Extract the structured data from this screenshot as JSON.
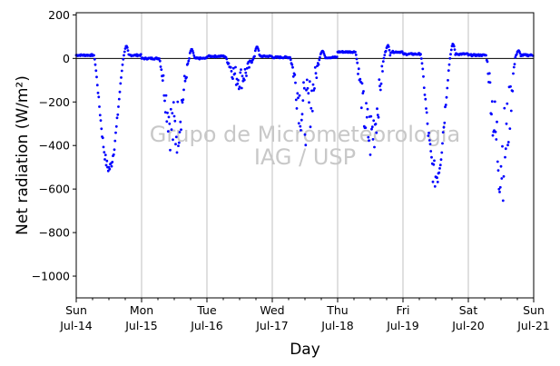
{
  "chart_data": {
    "type": "scatter",
    "title": "",
    "xlabel": "Day",
    "ylabel": "Net radiation (W/m²)",
    "ylim": [
      -1100,
      210
    ],
    "yticks": [
      200,
      0,
      -200,
      -400,
      -600,
      -800,
      -1000
    ],
    "ytick_labels": [
      "200",
      "0",
      "−200",
      "−400",
      "−600",
      "−800",
      "−1000"
    ],
    "xlim_days": [
      0,
      7
    ],
    "xticks": [
      {
        "day": "Sun",
        "date": "Jul-14"
      },
      {
        "day": "Mon",
        "date": "Jul-15"
      },
      {
        "day": "Tue",
        "date": "Jul-16"
      },
      {
        "day": "Wed",
        "date": "Jul-17"
      },
      {
        "day": "Thu",
        "date": "Jul-18"
      },
      {
        "day": "Fri",
        "date": "Jul-19"
      },
      {
        "day": "Sat",
        "date": "Jul-20"
      },
      {
        "day": "Sun",
        "date": "Jul-21"
      }
    ],
    "grid": "vertical",
    "zero_line": true,
    "watermark": [
      "Grupo de Micrometeorologia",
      "IAG / USP"
    ],
    "series": [
      {
        "color": "#0000ff",
        "marker": "dot",
        "days": [
          {
            "date": "Jul-14",
            "night": 15,
            "peak": -505,
            "peak_time": 0.5,
            "noise": 0.05,
            "evening_bump": 55
          },
          {
            "date": "Jul-15",
            "night": 0,
            "peak": -330,
            "peak_time": 0.5,
            "noise": 0.45,
            "evening_bump": 40
          },
          {
            "date": "Jul-16",
            "night": 10,
            "peak": -90,
            "peak_time": 0.5,
            "noise": 0.6,
            "evening_bump": 55
          },
          {
            "date": "Jul-17",
            "night": 5,
            "peak": -250,
            "peak_time": 0.45,
            "noise": 0.6,
            "evening_bump": 35
          },
          {
            "date": "Jul-18",
            "night": 30,
            "peak": -350,
            "peak_time": 0.5,
            "noise": 0.4,
            "evening_bump": 60
          },
          {
            "date": "Jul-19",
            "night": 20,
            "peak": -540,
            "peak_time": 0.48,
            "noise": 0.12,
            "evening_bump": 65
          },
          {
            "date": "Jul-20",
            "night": 15,
            "peak": -450,
            "peak_time": 0.5,
            "noise": 0.5,
            "evening_bump": 35
          }
        ]
      }
    ]
  }
}
